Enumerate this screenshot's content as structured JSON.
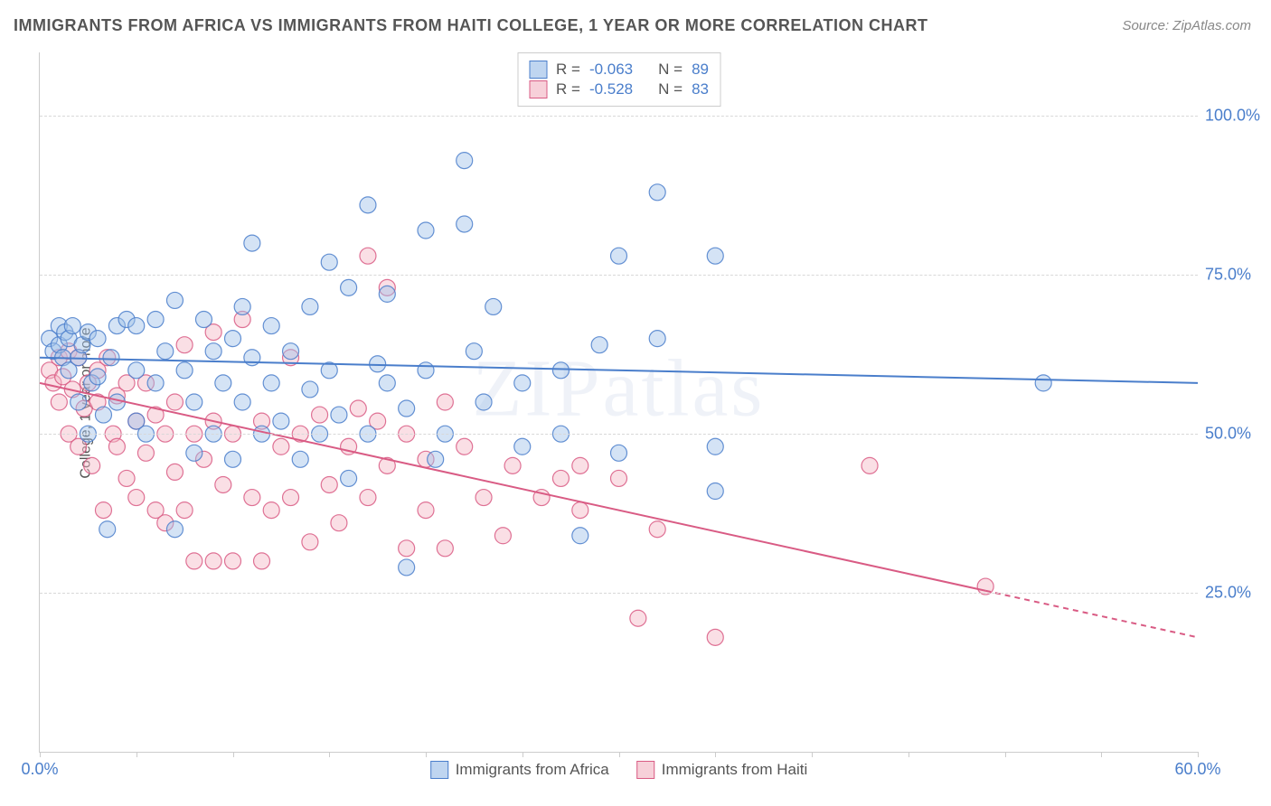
{
  "title": "IMMIGRANTS FROM AFRICA VS IMMIGRANTS FROM HAITI COLLEGE, 1 YEAR OR MORE CORRELATION CHART",
  "source": "Source: ZipAtlas.com",
  "ylabel": "College, 1 year or more",
  "watermark": "ZIPatlas",
  "chart": {
    "type": "scatter+regression",
    "xmin": 0,
    "xmax": 60,
    "ymin": 0,
    "ymax": 110,
    "ytick_values": [
      25.0,
      50.0,
      75.0,
      100.0
    ],
    "ytick_labels": [
      "25.0%",
      "50.0%",
      "75.0%",
      "100.0%"
    ],
    "xtick_values": [
      0,
      10,
      20,
      30,
      40,
      50,
      60
    ],
    "xtick_labels": [
      "0.0%",
      "",
      "",
      "",
      "",
      "",
      "60.0%"
    ],
    "xtick_marks": [
      0,
      5,
      10,
      15,
      20,
      25,
      30,
      35,
      40,
      45,
      50,
      55,
      60
    ],
    "grid_color": "#d8d8d8",
    "axis_color": "#cccccc",
    "background": "#ffffff",
    "marker_radius": 9,
    "marker_opacity": 0.45,
    "marker_stroke_opacity": 0.85,
    "line_width": 2
  },
  "series": {
    "africa": {
      "label": "Immigrants from Africa",
      "fill": "#9fc0e8",
      "stroke": "#4a7ecb",
      "R_label": "R =",
      "R": "-0.063",
      "N_label": "N =",
      "N": "89",
      "regression": {
        "x1": 0,
        "y1": 62.0,
        "x2": 60,
        "y2": 58.0,
        "solid_end_x": 60
      },
      "points": [
        [
          0.5,
          65
        ],
        [
          0.7,
          63
        ],
        [
          1,
          64
        ],
        [
          1,
          67
        ],
        [
          1.2,
          62
        ],
        [
          1.3,
          66
        ],
        [
          1.5,
          60
        ],
        [
          1.5,
          65
        ],
        [
          1.7,
          67
        ],
        [
          2,
          62
        ],
        [
          2,
          55
        ],
        [
          2.2,
          64
        ],
        [
          2.5,
          50
        ],
        [
          2.5,
          66
        ],
        [
          2.7,
          58
        ],
        [
          3,
          65
        ],
        [
          3,
          59
        ],
        [
          3.3,
          53
        ],
        [
          3.5,
          35
        ],
        [
          3.7,
          62
        ],
        [
          4,
          67
        ],
        [
          4,
          55
        ],
        [
          4.5,
          68
        ],
        [
          5,
          60
        ],
        [
          5,
          52
        ],
        [
          5,
          67
        ],
        [
          5.5,
          50
        ],
        [
          6,
          58
        ],
        [
          6,
          68
        ],
        [
          6.5,
          63
        ],
        [
          7,
          35
        ],
        [
          7,
          71
        ],
        [
          7.5,
          60
        ],
        [
          8,
          55
        ],
        [
          8,
          47
        ],
        [
          8.5,
          68
        ],
        [
          9,
          63
        ],
        [
          9,
          50
        ],
        [
          9.5,
          58
        ],
        [
          10,
          65
        ],
        [
          10,
          46
        ],
        [
          10.5,
          70
        ],
        [
          10.5,
          55
        ],
        [
          11,
          62
        ],
        [
          11,
          80
        ],
        [
          11.5,
          50
        ],
        [
          12,
          67
        ],
        [
          12,
          58
        ],
        [
          12.5,
          52
        ],
        [
          13,
          63
        ],
        [
          13.5,
          46
        ],
        [
          14,
          70
        ],
        [
          14,
          57
        ],
        [
          14.5,
          50
        ],
        [
          15,
          77
        ],
        [
          15,
          60
        ],
        [
          15.5,
          53
        ],
        [
          16,
          43
        ],
        [
          16,
          73
        ],
        [
          17,
          86
        ],
        [
          17,
          50
        ],
        [
          17.5,
          61
        ],
        [
          18,
          58
        ],
        [
          18,
          72
        ],
        [
          19,
          54
        ],
        [
          19,
          29
        ],
        [
          20,
          82
        ],
        [
          20,
          60
        ],
        [
          20.5,
          46
        ],
        [
          21,
          50
        ],
        [
          22,
          93
        ],
        [
          22,
          83
        ],
        [
          22.5,
          63
        ],
        [
          23,
          55
        ],
        [
          23.5,
          70
        ],
        [
          25,
          48
        ],
        [
          25,
          58
        ],
        [
          27,
          60
        ],
        [
          27,
          50
        ],
        [
          28,
          34
        ],
        [
          29,
          64
        ],
        [
          30,
          78
        ],
        [
          30,
          47
        ],
        [
          32,
          65
        ],
        [
          32,
          88
        ],
        [
          35,
          41
        ],
        [
          35,
          78
        ],
        [
          35,
          48
        ],
        [
          52,
          58
        ]
      ]
    },
    "haiti": {
      "label": "Immigrants from Haiti",
      "fill": "#f3b8c6",
      "stroke": "#d95b84",
      "R_label": "R =",
      "R": "-0.528",
      "N_label": "N =",
      "N": "83",
      "regression": {
        "x1": 0,
        "y1": 58.0,
        "x2": 60,
        "y2": 18.0,
        "solid_end_x": 49
      },
      "points": [
        [
          0.5,
          60
        ],
        [
          0.7,
          58
        ],
        [
          1,
          62
        ],
        [
          1,
          55
        ],
        [
          1.2,
          59
        ],
        [
          1.5,
          63
        ],
        [
          1.5,
          50
        ],
        [
          1.7,
          57
        ],
        [
          2,
          62
        ],
        [
          2,
          48
        ],
        [
          2.3,
          54
        ],
        [
          2.5,
          58
        ],
        [
          2.7,
          45
        ],
        [
          3,
          60
        ],
        [
          3,
          55
        ],
        [
          3.3,
          38
        ],
        [
          3.5,
          62
        ],
        [
          3.8,
          50
        ],
        [
          4,
          56
        ],
        [
          4,
          48
        ],
        [
          4.5,
          58
        ],
        [
          4.5,
          43
        ],
        [
          5,
          52
        ],
        [
          5,
          40
        ],
        [
          5.5,
          58
        ],
        [
          5.5,
          47
        ],
        [
          6,
          53
        ],
        [
          6,
          38
        ],
        [
          6.5,
          50
        ],
        [
          6.5,
          36
        ],
        [
          7,
          55
        ],
        [
          7,
          44
        ],
        [
          7.5,
          64
        ],
        [
          7.5,
          38
        ],
        [
          8,
          50
        ],
        [
          8,
          30
        ],
        [
          8.5,
          46
        ],
        [
          9,
          66
        ],
        [
          9,
          52
        ],
        [
          9,
          30
        ],
        [
          9.5,
          42
        ],
        [
          10,
          50
        ],
        [
          10,
          30
        ],
        [
          10.5,
          68
        ],
        [
          11,
          40
        ],
        [
          11.5,
          52
        ],
        [
          11.5,
          30
        ],
        [
          12,
          38
        ],
        [
          12.5,
          48
        ],
        [
          13,
          62
        ],
        [
          13,
          40
        ],
        [
          13.5,
          50
        ],
        [
          14,
          33
        ],
        [
          14.5,
          53
        ],
        [
          15,
          42
        ],
        [
          15.5,
          36
        ],
        [
          16,
          48
        ],
        [
          16.5,
          54
        ],
        [
          17,
          78
        ],
        [
          17,
          40
        ],
        [
          17.5,
          52
        ],
        [
          18,
          73
        ],
        [
          18,
          45
        ],
        [
          19,
          50
        ],
        [
          19,
          32
        ],
        [
          20,
          38
        ],
        [
          20,
          46
        ],
        [
          21,
          55
        ],
        [
          21,
          32
        ],
        [
          22,
          48
        ],
        [
          23,
          40
        ],
        [
          24,
          34
        ],
        [
          24.5,
          45
        ],
        [
          26,
          40
        ],
        [
          27,
          43
        ],
        [
          28,
          45
        ],
        [
          28,
          38
        ],
        [
          30,
          43
        ],
        [
          31,
          21
        ],
        [
          32,
          35
        ],
        [
          35,
          18
        ],
        [
          43,
          45
        ],
        [
          49,
          26
        ]
      ]
    }
  }
}
